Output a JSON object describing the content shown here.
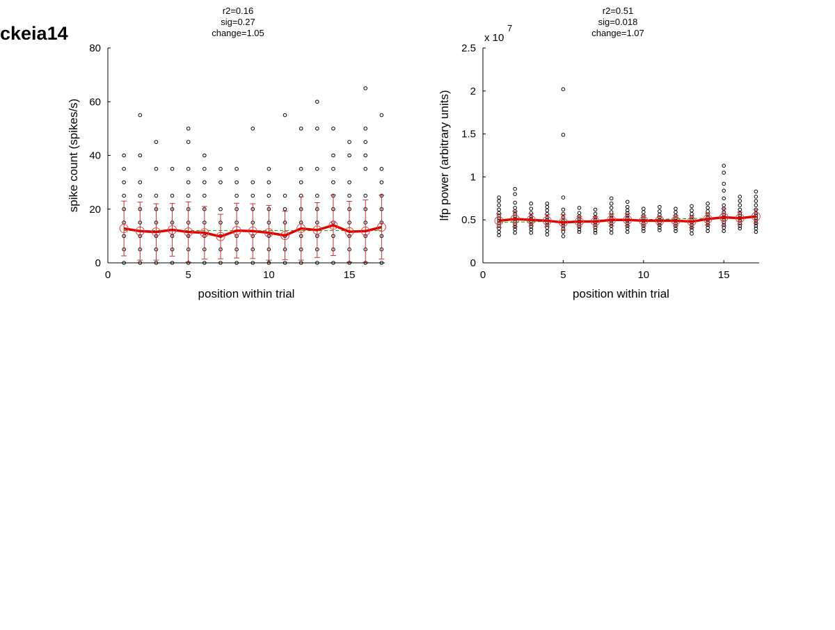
{
  "figure_label": "ckeia14",
  "colors": {
    "mean_line": "#e00000",
    "mean_marker": "#e04040",
    "error_bar": "#c03030",
    "fit_line": "#00a000",
    "points": "#000000",
    "axis": "#000000"
  },
  "chart_data": [
    {
      "type": "scatter",
      "title_lines": [
        "r2=0.16",
        "sig=0.27",
        "change=1.05"
      ],
      "xlabel": "position within trial",
      "ylabel": "spike count (spikes/s)",
      "xlim": [
        0,
        17.2
      ],
      "ylim": [
        0,
        80
      ],
      "xticks": [
        0,
        5,
        10,
        15
      ],
      "yticks": [
        0,
        20,
        40,
        60,
        80
      ],
      "ytick_labels": [
        "0",
        "20",
        "40",
        "60",
        "80"
      ],
      "exponent_label": "",
      "grid": false,
      "points": [
        {
          "x": 1,
          "ys": [
            0,
            5,
            10,
            15,
            20,
            25,
            30,
            35,
            40
          ]
        },
        {
          "x": 2,
          "ys": [
            0,
            5,
            10,
            15,
            20,
            25,
            30,
            40,
            55
          ]
        },
        {
          "x": 3,
          "ys": [
            0,
            5,
            10,
            15,
            20,
            25,
            35,
            45
          ]
        },
        {
          "x": 4,
          "ys": [
            0,
            5,
            10,
            15,
            20,
            25,
            35
          ]
        },
        {
          "x": 5,
          "ys": [
            0,
            5,
            10,
            15,
            20,
            25,
            30,
            35,
            45,
            50
          ]
        },
        {
          "x": 6,
          "ys": [
            0,
            5,
            10,
            15,
            20,
            25,
            30,
            35,
            40
          ]
        },
        {
          "x": 7,
          "ys": [
            0,
            5,
            10,
            15,
            20,
            30,
            35
          ]
        },
        {
          "x": 8,
          "ys": [
            0,
            5,
            10,
            15,
            20,
            25,
            30,
            35
          ]
        },
        {
          "x": 9,
          "ys": [
            0,
            5,
            10,
            15,
            20,
            25,
            30,
            50
          ]
        },
        {
          "x": 10,
          "ys": [
            0,
            5,
            10,
            15,
            20,
            25,
            30,
            35
          ]
        },
        {
          "x": 11,
          "ys": [
            0,
            5,
            10,
            15,
            20,
            25,
            55
          ]
        },
        {
          "x": 12,
          "ys": [
            0,
            5,
            10,
            15,
            20,
            25,
            30,
            35,
            50
          ]
        },
        {
          "x": 13,
          "ys": [
            0,
            5,
            10,
            15,
            20,
            25,
            35,
            50,
            60
          ]
        },
        {
          "x": 14,
          "ys": [
            0,
            5,
            10,
            15,
            20,
            25,
            30,
            35,
            40,
            50
          ]
        },
        {
          "x": 15,
          "ys": [
            0,
            5,
            10,
            15,
            20,
            25,
            30,
            40,
            45
          ]
        },
        {
          "x": 16,
          "ys": [
            0,
            5,
            10,
            15,
            20,
            25,
            35,
            40,
            45,
            50,
            65
          ]
        },
        {
          "x": 17,
          "ys": [
            0,
            5,
            10,
            15,
            20,
            25,
            30,
            35,
            55
          ]
        }
      ],
      "mean": {
        "x": [
          1,
          2,
          3,
          4,
          5,
          6,
          7,
          8,
          9,
          10,
          11,
          12,
          13,
          14,
          15,
          16,
          17
        ],
        "y": [
          12.8,
          11.8,
          11.5,
          12.3,
          11.5,
          11.2,
          9.8,
          12.0,
          11.8,
          11.2,
          10.2,
          12.8,
          12.2,
          14.0,
          11.6,
          11.8,
          13.3
        ],
        "err": [
          10.2,
          10.8,
          10.5,
          9.8,
          11.2,
          9.8,
          8.3,
          10.2,
          10.2,
          10.2,
          9.0,
          11.8,
          10.2,
          11.3,
          11.3,
          11.6,
          11.9
        ]
      },
      "fit": {
        "x": [
          1,
          17
        ],
        "y": [
          12.0,
          12.0
        ]
      }
    },
    {
      "type": "scatter",
      "title_lines": [
        "r2=0.51",
        "sig=0.018",
        "change=1.07"
      ],
      "xlabel": "position within trial",
      "ylabel": "lfp power (arbitrary units)",
      "xlim": [
        0,
        17.2
      ],
      "ylim": [
        0,
        2.5
      ],
      "xticks": [
        0,
        5,
        10,
        15
      ],
      "yticks": [
        0,
        0.5,
        1,
        1.5,
        2,
        2.5
      ],
      "ytick_labels": [
        "0",
        "0.5",
        "1",
        "1.5",
        "2",
        "2.5"
      ],
      "exponent_label": "x 10",
      "exponent_power": "7",
      "grid": false,
      "points": [
        {
          "x": 1,
          "ys": [
            0.32,
            0.36,
            0.4,
            0.43,
            0.46,
            0.49,
            0.52,
            0.55,
            0.58,
            0.62,
            0.67,
            0.72,
            0.76
          ]
        },
        {
          "x": 2,
          "ys": [
            0.35,
            0.39,
            0.42,
            0.45,
            0.48,
            0.51,
            0.54,
            0.57,
            0.6,
            0.64,
            0.7,
            0.8,
            0.86
          ]
        },
        {
          "x": 3,
          "ys": [
            0.35,
            0.39,
            0.42,
            0.45,
            0.48,
            0.51,
            0.54,
            0.58,
            0.63,
            0.69
          ]
        },
        {
          "x": 4,
          "ys": [
            0.33,
            0.37,
            0.41,
            0.44,
            0.47,
            0.5,
            0.53,
            0.57,
            0.61,
            0.65,
            0.69
          ]
        },
        {
          "x": 5,
          "ys": [
            0.31,
            0.36,
            0.4,
            0.43,
            0.46,
            0.49,
            0.53,
            0.57,
            0.62,
            0.76,
            1.49,
            2.02
          ]
        },
        {
          "x": 6,
          "ys": [
            0.36,
            0.39,
            0.42,
            0.45,
            0.48,
            0.51,
            0.54,
            0.58,
            0.64
          ]
        },
        {
          "x": 7,
          "ys": [
            0.35,
            0.38,
            0.41,
            0.44,
            0.47,
            0.5,
            0.53,
            0.57,
            0.62
          ]
        },
        {
          "x": 8,
          "ys": [
            0.35,
            0.39,
            0.43,
            0.46,
            0.49,
            0.52,
            0.55,
            0.59,
            0.64,
            0.69,
            0.75
          ]
        },
        {
          "x": 9,
          "ys": [
            0.36,
            0.4,
            0.43,
            0.46,
            0.49,
            0.52,
            0.55,
            0.58,
            0.61,
            0.65,
            0.71
          ]
        },
        {
          "x": 10,
          "ys": [
            0.37,
            0.4,
            0.43,
            0.46,
            0.49,
            0.52,
            0.55,
            0.59,
            0.63
          ]
        },
        {
          "x": 11,
          "ys": [
            0.38,
            0.41,
            0.44,
            0.47,
            0.5,
            0.53,
            0.56,
            0.6,
            0.65
          ]
        },
        {
          "x": 12,
          "ys": [
            0.37,
            0.4,
            0.43,
            0.46,
            0.49,
            0.52,
            0.55,
            0.59,
            0.63
          ]
        },
        {
          "x": 13,
          "ys": [
            0.34,
            0.38,
            0.41,
            0.44,
            0.47,
            0.5,
            0.53,
            0.57,
            0.61,
            0.66
          ]
        },
        {
          "x": 14,
          "ys": [
            0.37,
            0.41,
            0.44,
            0.47,
            0.5,
            0.53,
            0.56,
            0.6,
            0.64,
            0.69
          ]
        },
        {
          "x": 15,
          "ys": [
            0.37,
            0.41,
            0.44,
            0.47,
            0.5,
            0.53,
            0.56,
            0.59,
            0.63,
            0.67,
            0.75,
            0.84,
            0.92,
            1.05,
            1.13
          ]
        },
        {
          "x": 16,
          "ys": [
            0.4,
            0.43,
            0.46,
            0.49,
            0.52,
            0.55,
            0.58,
            0.62,
            0.67,
            0.72,
            0.77
          ]
        },
        {
          "x": 17,
          "ys": [
            0.36,
            0.4,
            0.43,
            0.46,
            0.49,
            0.52,
            0.55,
            0.58,
            0.62,
            0.67,
            0.72,
            0.77,
            0.83
          ]
        }
      ],
      "mean": {
        "x": [
          1,
          2,
          3,
          4,
          5,
          6,
          7,
          8,
          9,
          10,
          11,
          12,
          13,
          14,
          15,
          16,
          17
        ],
        "y": [
          0.49,
          0.51,
          0.5,
          0.49,
          0.47,
          0.48,
          0.48,
          0.5,
          0.5,
          0.49,
          0.49,
          0.49,
          0.48,
          0.51,
          0.53,
          0.52,
          0.54
        ],
        "err": [
          0.08,
          0.09,
          0.07,
          0.07,
          0.09,
          0.06,
          0.06,
          0.07,
          0.07,
          0.06,
          0.05,
          0.06,
          0.07,
          0.07,
          0.1,
          0.07,
          0.08
        ]
      },
      "fit": {
        "x": [
          1,
          17
        ],
        "y": [
          0.47,
          0.53
        ]
      }
    }
  ]
}
